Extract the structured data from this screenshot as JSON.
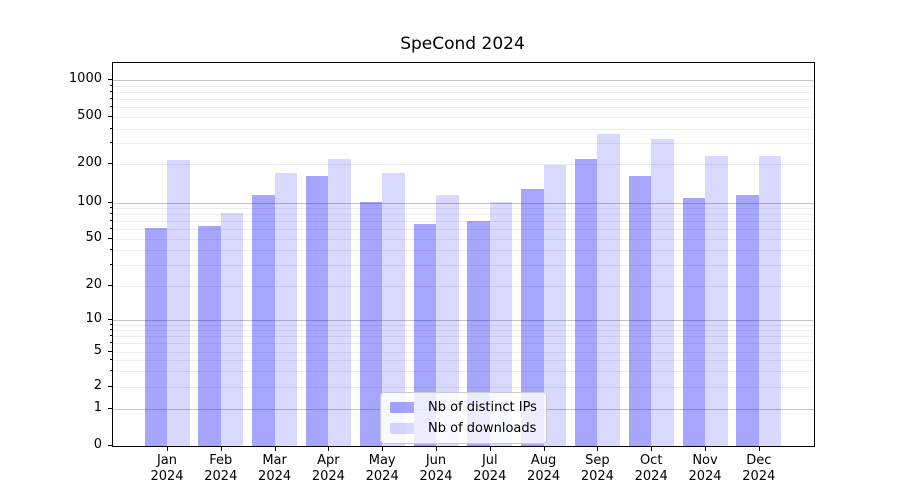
{
  "chart_data": {
    "type": "bar",
    "title": "SpeCond 2024",
    "categories": [
      [
        "Jan",
        "2024"
      ],
      [
        "Feb",
        "2024"
      ],
      [
        "Mar",
        "2024"
      ],
      [
        "Apr",
        "2024"
      ],
      [
        "May",
        "2024"
      ],
      [
        "Jun",
        "2024"
      ],
      [
        "Jul",
        "2024"
      ],
      [
        "Aug",
        "2024"
      ],
      [
        "Sep",
        "2024"
      ],
      [
        "Oct",
        "2024"
      ],
      [
        "Nov",
        "2024"
      ],
      [
        "Dec",
        "2024"
      ]
    ],
    "series": [
      {
        "name": "Nb of distinct IPs",
        "color": "rgba(0,0,255,0.35)",
        "values": [
          62,
          64,
          114,
          162,
          102,
          66,
          70,
          128,
          220,
          162,
          108,
          114
        ]
      },
      {
        "name": "Nb of downloads",
        "color": "rgba(0,0,255,0.15)",
        "values": [
          218,
          82,
          170,
          220,
          170,
          115,
          101,
          196,
          360,
          325,
          234,
          236
        ]
      }
    ],
    "yscale": "symlog",
    "y_tick_values": [
      0,
      1,
      2,
      5,
      10,
      20,
      50,
      100,
      200,
      500,
      1000
    ],
    "y_tick_labels": [
      "0",
      "1",
      "2",
      "5",
      "10",
      "20",
      "50",
      "100",
      "200",
      "500",
      "1000"
    ],
    "ylim": [
      0,
      1400
    ],
    "xlabel": "",
    "ylabel": "",
    "grid": true,
    "legend_position": "lower center"
  }
}
